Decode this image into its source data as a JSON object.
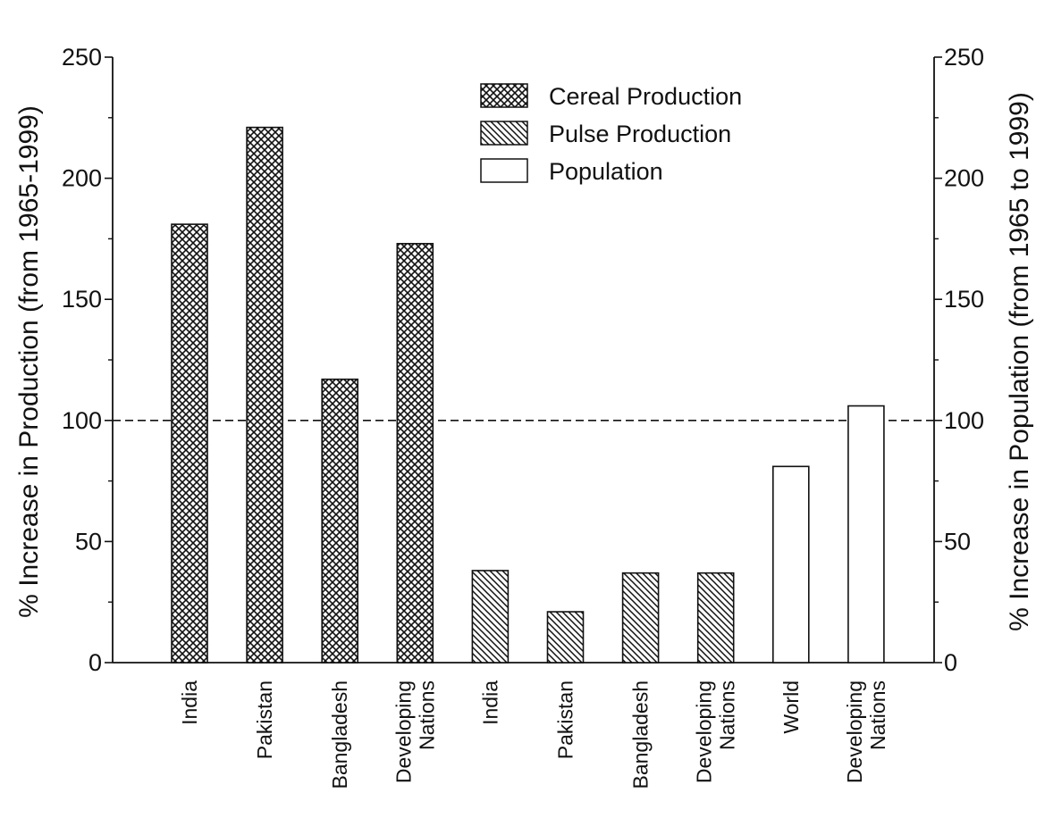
{
  "chart_data": {
    "type": "bar",
    "left_axis": {
      "label": "% Increase in Production (from 1965-1999)",
      "ylim": [
        0,
        250
      ],
      "ticks": [
        "0",
        "50",
        "100",
        "150",
        "200",
        "250"
      ]
    },
    "right_axis": {
      "label": "% Increase in Population (from 1965 to 1999)",
      "ylim": [
        0,
        250
      ],
      "ticks": [
        "0",
        "50",
        "100",
        "150",
        "200",
        "250"
      ]
    },
    "reference_line": {
      "y": 100,
      "style": "dashed"
    },
    "legend_placement": "top-center",
    "series": [
      {
        "name": "Cereal Production",
        "pattern": "crosshatch",
        "categories": [
          [
            "India"
          ],
          [
            "Pakistan"
          ],
          [
            "Bangladesh"
          ],
          [
            "Developing",
            "Nations"
          ]
        ],
        "values": [
          181,
          221,
          117,
          173
        ]
      },
      {
        "name": "Pulse Production",
        "pattern": "diagonal",
        "categories": [
          [
            "India"
          ],
          [
            "Pakistan"
          ],
          [
            "Bangladesh"
          ],
          [
            "Developing",
            "Nations"
          ]
        ],
        "values": [
          38,
          21,
          37,
          37
        ]
      },
      {
        "name": "Population",
        "pattern": "none",
        "categories": [
          [
            "World"
          ],
          [
            "Developing",
            "Nations"
          ]
        ],
        "values": [
          81,
          106
        ]
      }
    ],
    "colors": {
      "stroke": "#111111",
      "fill": "#ffffff"
    }
  }
}
